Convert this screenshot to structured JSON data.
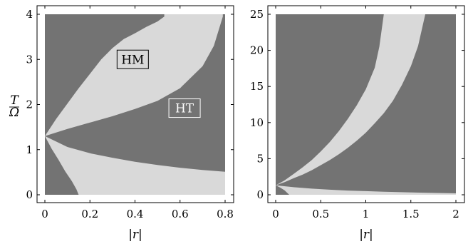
{
  "colors": {
    "dark_region": "#737373",
    "light_region": "#d9d9d9",
    "frame": "#000000",
    "background": "#ffffff"
  },
  "chart_data": [
    {
      "type": "area",
      "title": "",
      "xlabel": "|r|",
      "ylabel": "T/Ω",
      "ylabel_num": "T",
      "ylabel_den": "Ω",
      "xlim": [
        0,
        0.8
      ],
      "ylim": [
        0,
        4
      ],
      "xticks": [
        0,
        0.2,
        0.4,
        0.6,
        0.8
      ],
      "xtick_labels": [
        "0",
        "0.2",
        "0.4",
        "0.6",
        "0.8"
      ],
      "yticks": [
        0,
        1,
        2,
        3,
        4
      ],
      "ytick_labels": [
        "0",
        "1",
        "2",
        "3",
        "4"
      ],
      "background_region": "dark",
      "regions": [
        {
          "fill": "light",
          "upper": [
            [
              0,
              1.3
            ],
            [
              0.05,
              1.68
            ],
            [
              0.1,
              2.02
            ],
            [
              0.15,
              2.36
            ],
            [
              0.2,
              2.68
            ],
            [
              0.25,
              3.0
            ],
            [
              0.3,
              3.25
            ],
            [
              0.35,
              3.45
            ],
            [
              0.4,
              3.58
            ],
            [
              0.45,
              3.72
            ],
            [
              0.5,
              3.84
            ],
            [
              0.53,
              3.95
            ]
          ],
          "lower": [
            [
              0,
              1.3
            ],
            [
              0.1,
              1.46
            ],
            [
              0.2,
              1.6
            ],
            [
              0.3,
              1.74
            ],
            [
              0.4,
              1.9
            ],
            [
              0.5,
              2.08
            ],
            [
              0.6,
              2.36
            ],
            [
              0.7,
              2.85
            ],
            [
              0.75,
              3.3
            ],
            [
              0.79,
              3.95
            ]
          ]
        },
        {
          "fill": "light",
          "upper": [
            [
              0,
              1.3
            ],
            [
              0.1,
              1.06
            ],
            [
              0.2,
              0.92
            ],
            [
              0.3,
              0.82
            ],
            [
              0.4,
              0.73
            ],
            [
              0.5,
              0.66
            ],
            [
              0.6,
              0.6
            ],
            [
              0.7,
              0.55
            ],
            [
              0.8,
              0.51
            ]
          ],
          "lower_left": [
            [
              0,
              1.3
            ],
            [
              0.03,
              1.02
            ],
            [
              0.06,
              0.78
            ],
            [
              0.09,
              0.52
            ],
            [
              0.12,
              0.3
            ],
            [
              0.14,
              0.12
            ],
            [
              0.15,
              0.0
            ]
          ],
          "baseline": 0
        }
      ],
      "annotations": [
        {
          "text": "HM",
          "x": 0.39,
          "y": 3.0
        },
        {
          "text": "HT",
          "x": 0.62,
          "y": 1.92
        }
      ]
    },
    {
      "type": "area",
      "title": "",
      "xlabel": "|r|",
      "ylabel": "",
      "xlim": [
        0,
        2
      ],
      "ylim": [
        0,
        25
      ],
      "xticks": [
        0,
        0.5,
        1,
        1.5,
        2
      ],
      "xtick_labels": [
        "0",
        "0.5",
        "1",
        "1.5",
        "2"
      ],
      "yticks": [
        0,
        5,
        10,
        15,
        20,
        25
      ],
      "ytick_labels": [
        "0",
        "5",
        "10",
        "15",
        "20",
        "25"
      ],
      "background_region": "dark",
      "regions": [
        {
          "fill": "light",
          "upper": [
            [
              0,
              1.3
            ],
            [
              0.1,
              2.0
            ],
            [
              0.2,
              2.9
            ],
            [
              0.3,
              3.8
            ],
            [
              0.4,
              4.8
            ],
            [
              0.5,
              6.0
            ],
            [
              0.6,
              7.3
            ],
            [
              0.7,
              8.8
            ],
            [
              0.8,
              10.5
            ],
            [
              0.9,
              12.4
            ],
            [
              1.0,
              14.6
            ],
            [
              1.1,
              17.6
            ],
            [
              1.15,
              20.5
            ],
            [
              1.2,
              25.0
            ]
          ],
          "lower": [
            [
              0,
              1.3
            ],
            [
              0.1,
              1.75
            ],
            [
              0.2,
              2.3
            ],
            [
              0.3,
              2.8
            ],
            [
              0.4,
              3.4
            ],
            [
              0.5,
              4.1
            ],
            [
              0.6,
              4.8
            ],
            [
              0.7,
              5.6
            ],
            [
              0.8,
              6.5
            ],
            [
              0.9,
              7.5
            ],
            [
              1.0,
              8.6
            ],
            [
              1.1,
              9.9
            ],
            [
              1.2,
              11.3
            ],
            [
              1.3,
              13.0
            ],
            [
              1.4,
              15.2
            ],
            [
              1.5,
              17.8
            ],
            [
              1.58,
              20.6
            ],
            [
              1.66,
              25.0
            ]
          ]
        },
        {
          "fill": "light",
          "upper": [
            [
              0,
              1.3
            ],
            [
              0.2,
              1.05
            ],
            [
              0.4,
              0.85
            ],
            [
              0.6,
              0.7
            ],
            [
              0.8,
              0.58
            ],
            [
              1.0,
              0.5
            ],
            [
              1.2,
              0.42
            ],
            [
              1.4,
              0.36
            ],
            [
              1.6,
              0.3
            ],
            [
              1.8,
              0.25
            ],
            [
              2.0,
              0.2
            ]
          ],
          "lower_left": [
            [
              0,
              1.3
            ],
            [
              0.05,
              1.0
            ],
            [
              0.1,
              0.6
            ],
            [
              0.15,
              0.0
            ]
          ],
          "baseline": 0
        }
      ],
      "annotations": []
    }
  ]
}
